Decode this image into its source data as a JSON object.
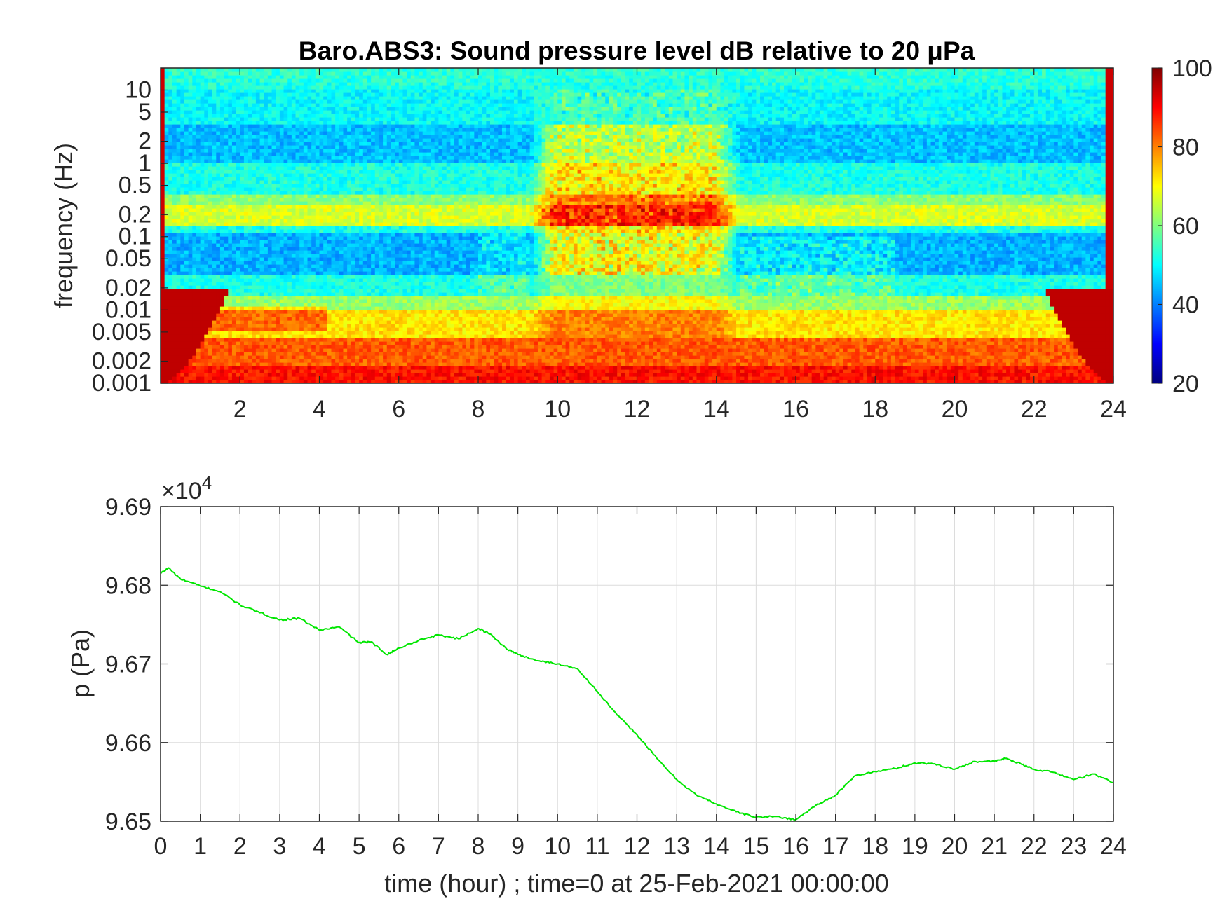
{
  "chart_data": [
    {
      "type": "heatmap",
      "title": "Baro.ABS3: Sound pressure level dB relative to 20 μPa",
      "xlabel": "",
      "ylabel": "frequency (Hz)",
      "xlim": [
        0,
        24
      ],
      "ylim": [
        0.001,
        20
      ],
      "y_scale": "log",
      "x_ticks": [
        "2",
        "4",
        "6",
        "8",
        "10",
        "12",
        "14",
        "16",
        "18",
        "20",
        "22",
        "24"
      ],
      "y_ticks": [
        "0.001",
        "0.002",
        "0.005",
        "0.01",
        "0.02",
        "0.05",
        "0.1",
        "0.2",
        "0.5",
        "1",
        "2",
        "5",
        "10"
      ],
      "colormap": "jet",
      "colorbar": {
        "range": [
          20,
          100
        ],
        "ticks": [
          "20",
          "40",
          "60",
          "80",
          "100"
        ]
      }
    },
    {
      "type": "line",
      "title": "",
      "xlabel": "time (hour) ; time=0 at 25-Feb-2021 00:00:00",
      "ylabel": "p (Pa)",
      "xlim": [
        0,
        24
      ],
      "ylim": [
        96500,
        96900
      ],
      "y_exponent": "×10",
      "y_exponent_power": "4",
      "x_ticks": [
        "0",
        "1",
        "2",
        "3",
        "4",
        "5",
        "6",
        "7",
        "8",
        "9",
        "10",
        "11",
        "12",
        "13",
        "14",
        "15",
        "16",
        "17",
        "18",
        "19",
        "20",
        "21",
        "22",
        "23",
        "24"
      ],
      "y_ticks": [
        "9.65",
        "9.66",
        "9.67",
        "9.68",
        "9.69"
      ],
      "grid": true,
      "line_color": "#00e600",
      "series": [
        {
          "x": [
            0,
            0.2,
            0.5,
            1,
            1.5,
            2,
            2.5,
            3,
            3.5,
            4,
            4.5,
            5,
            5.3,
            5.7,
            6,
            6.5,
            7,
            7.5,
            8,
            8.3,
            8.7,
            9,
            9.5,
            10,
            10.5,
            11,
            11.5,
            12,
            12.5,
            13,
            13.5,
            14,
            14.5,
            15,
            15.5,
            16,
            16.5,
            17,
            17.5,
            18,
            18.5,
            19,
            19.5,
            20,
            20.5,
            21,
            21.3,
            21.7,
            22,
            22.5,
            23,
            23.5,
            24
          ],
          "y": [
            96815,
            96822,
            96808,
            96799,
            96792,
            96775,
            96765,
            96756,
            96758,
            96743,
            96747,
            96727,
            96728,
            96712,
            96720,
            96730,
            96737,
            96732,
            96745,
            96738,
            96720,
            96712,
            96704,
            96700,
            96694,
            96665,
            96635,
            96610,
            96580,
            96553,
            96533,
            96522,
            96512,
            96505,
            96506,
            96502,
            96520,
            96533,
            96558,
            96563,
            96567,
            96574,
            96573,
            96566,
            96576,
            96576,
            96580,
            96572,
            96566,
            96562,
            96553,
            96560,
            96549
          ]
        }
      ]
    }
  ]
}
